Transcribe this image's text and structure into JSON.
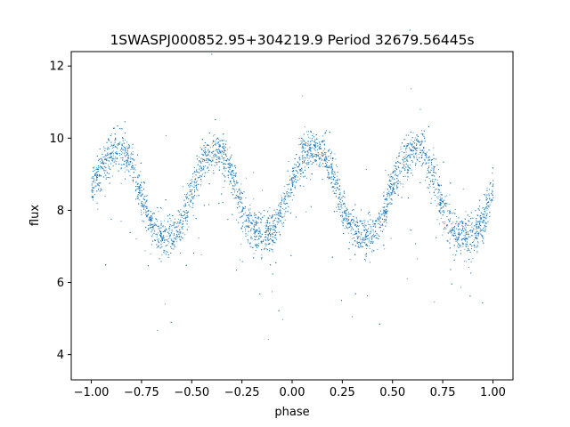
{
  "chart_data": {
    "type": "scatter",
    "title": "1SWASPJ000852.95+304219.9 Period 32679.56445s",
    "xlabel": "phase",
    "ylabel": "flux",
    "xlim": [
      -1.1,
      1.1
    ],
    "ylim": [
      3.3,
      12.4
    ],
    "xticks": [
      -1.0,
      -0.75,
      -0.5,
      -0.25,
      0.0,
      0.25,
      0.5,
      0.75,
      1.0
    ],
    "xtick_labels": [
      "−1.00",
      "−0.75",
      "−0.50",
      "−0.25",
      "0.00",
      "0.25",
      "0.50",
      "0.75",
      "1.00"
    ],
    "yticks": [
      4,
      6,
      8,
      10,
      12
    ],
    "ytick_labels": [
      "4",
      "6",
      "8",
      "10",
      "12"
    ],
    "grid": false,
    "legend": "none",
    "marker_color": "#1f77b4",
    "series": [
      {
        "points_description_curve": {
          "phase": [
            -1.0,
            -0.95,
            -0.9,
            -0.85,
            -0.8,
            -0.75,
            -0.7,
            -0.65,
            -0.6,
            -0.55,
            -0.5,
            -0.45,
            -0.4,
            -0.35,
            -0.3,
            -0.25,
            -0.2,
            -0.15,
            -0.1,
            -0.05,
            0.0,
            0.05,
            0.1,
            0.15,
            0.2,
            0.25,
            0.3,
            0.35,
            0.4,
            0.45,
            0.5,
            0.55,
            0.6,
            0.65,
            0.7,
            0.75,
            0.8,
            0.85,
            0.9,
            0.95,
            1.0
          ],
          "flux": [
            8.7,
            9.2,
            9.6,
            9.7,
            9.3,
            8.3,
            7.6,
            7.3,
            7.3,
            7.7,
            8.6,
            9.3,
            9.6,
            9.6,
            9.0,
            8.0,
            7.4,
            7.3,
            7.4,
            8.0,
            8.9,
            9.5,
            9.7,
            9.6,
            9.0,
            8.1,
            7.5,
            7.3,
            7.3,
            7.8,
            8.8,
            9.4,
            9.7,
            9.6,
            9.0,
            8.0,
            7.4,
            7.3,
            7.3,
            7.7,
            8.7
          ]
        }
      }
    ]
  }
}
